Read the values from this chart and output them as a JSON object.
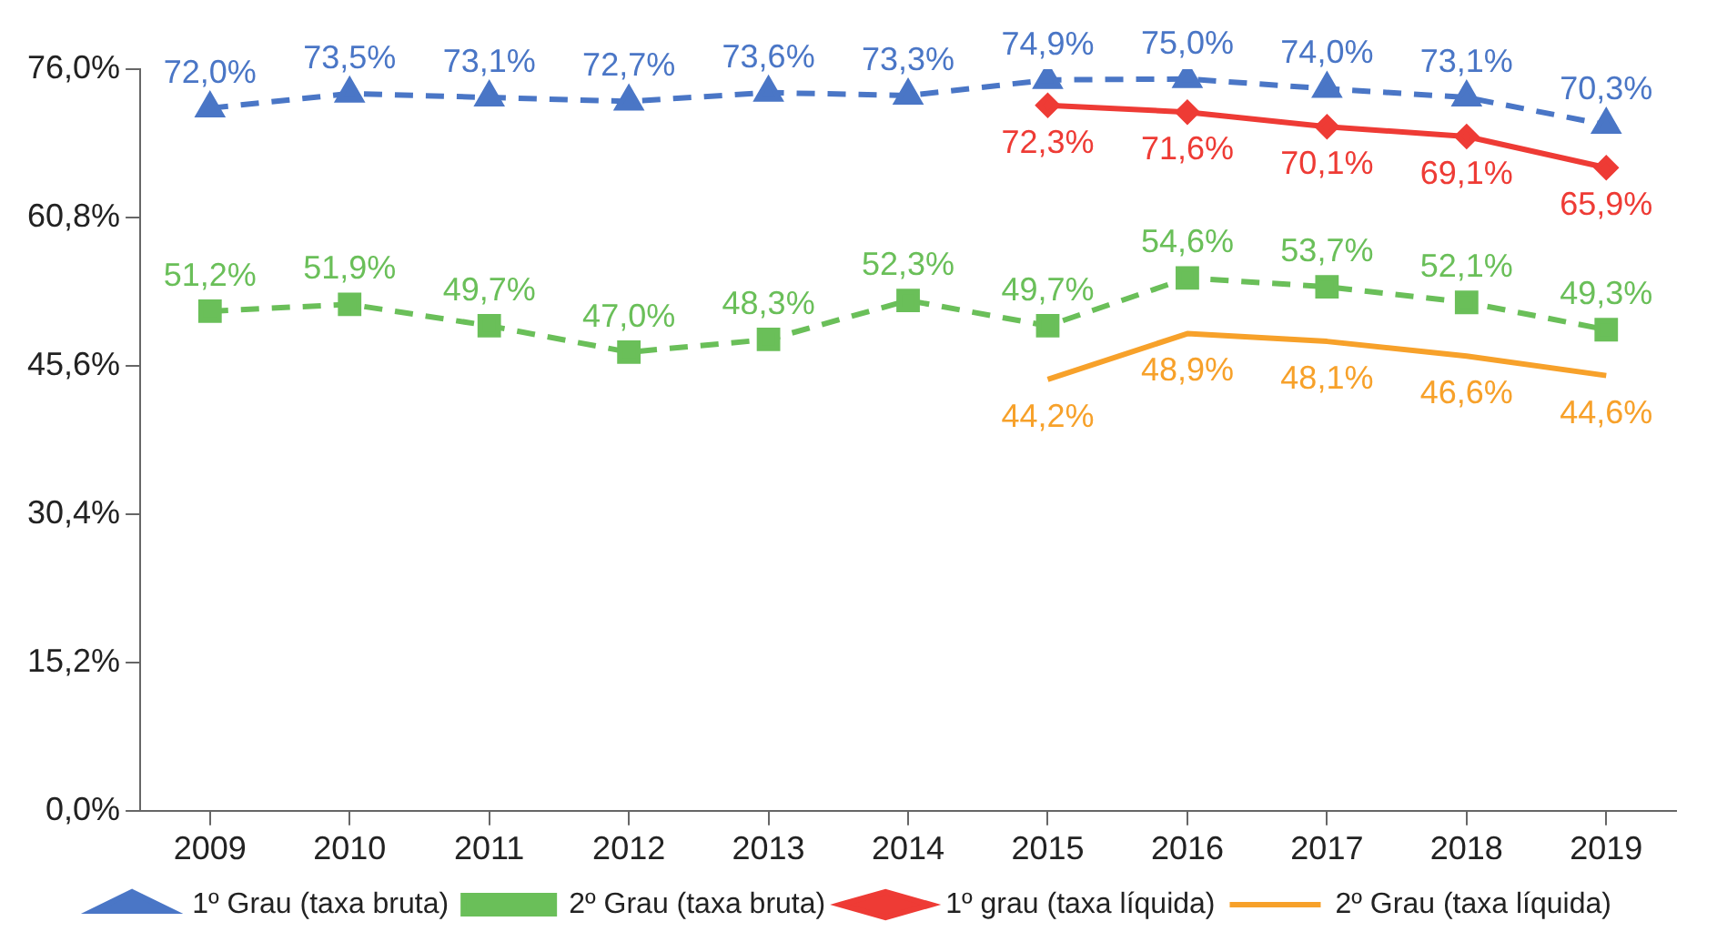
{
  "chart_data": {
    "type": "line",
    "categories": [
      "2009",
      "2010",
      "2011",
      "2012",
      "2013",
      "2014",
      "2015",
      "2016",
      "2017",
      "2018",
      "2019"
    ],
    "ylim": [
      0,
      76
    ],
    "yticks": [
      {
        "value": 0,
        "label": "0,0%"
      },
      {
        "value": 15.2,
        "label": "15,2%"
      },
      {
        "value": 30.4,
        "label": "30,4%"
      },
      {
        "value": 45.6,
        "label": "45,6%"
      },
      {
        "value": 60.8,
        "label": "60,8%"
      },
      {
        "value": 76,
        "label": "76,0%"
      }
    ],
    "grid": false,
    "legend": "bottom",
    "series": [
      {
        "name": "1º Grau (taxa bruta)",
        "color": "#4a76c6",
        "marker": "triangle",
        "line_style": "dashed",
        "values": [
          72.0,
          73.5,
          73.1,
          72.7,
          73.6,
          73.3,
          74.9,
          75.0,
          74.0,
          73.1,
          70.3
        ],
        "value_labels": [
          "72,0%",
          "73,5%",
          "73,1%",
          "72,7%",
          "73,6%",
          "73,3%",
          "74,9%",
          "75,0%",
          "74,0%",
          "73,1%",
          "70,3%"
        ]
      },
      {
        "name": "2º Grau (taxa bruta)",
        "color": "#6abf59",
        "marker": "square",
        "line_style": "dashed",
        "values": [
          51.2,
          51.9,
          49.7,
          47.0,
          48.3,
          52.3,
          49.7,
          54.6,
          53.7,
          52.1,
          49.3
        ],
        "value_labels": [
          "51,2%",
          "51,9%",
          "49,7%",
          "47,0%",
          "48,3%",
          "52,3%",
          "49,7%",
          "54,6%",
          "53,7%",
          "52,1%",
          "49,3%"
        ]
      },
      {
        "name": "1º grau (taxa líquida)",
        "color": "#ee3b35",
        "marker": "diamond",
        "line_style": "solid",
        "values": [
          null,
          null,
          null,
          null,
          null,
          null,
          72.3,
          71.6,
          70.1,
          69.1,
          65.9
        ],
        "value_labels": [
          null,
          null,
          null,
          null,
          null,
          null,
          "72,3%",
          "71,6%",
          "70,1%",
          "69,1%",
          "65,9%"
        ]
      },
      {
        "name": "2º Grau (taxa líquida)",
        "color": "#f7a12a",
        "marker": "none",
        "line_style": "solid",
        "values": [
          null,
          null,
          null,
          null,
          null,
          null,
          44.2,
          48.9,
          48.1,
          46.6,
          44.6
        ],
        "value_labels": [
          null,
          null,
          null,
          null,
          null,
          null,
          "44,2%",
          "48,9%",
          "48,1%",
          "46,6%",
          "44,6%"
        ]
      }
    ]
  }
}
